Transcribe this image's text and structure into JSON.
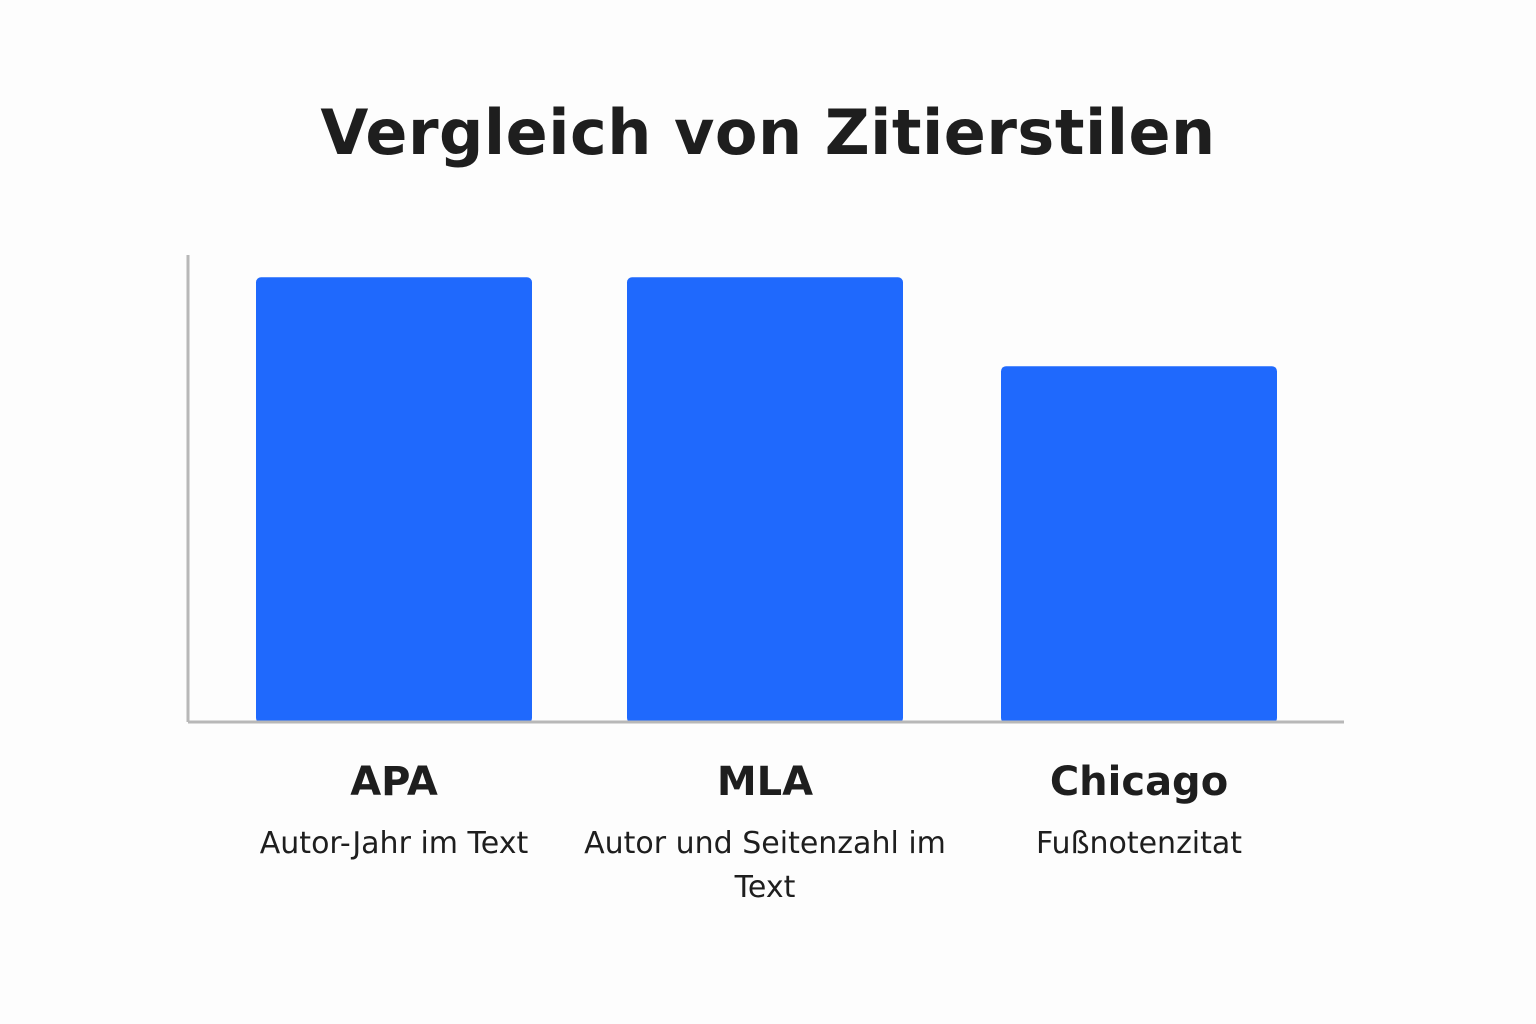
{
  "chart_data": {
    "type": "bar",
    "title": "Vergleich von Zitierstilen",
    "categories": [
      "APA",
      "MLA",
      "Chicago"
    ],
    "descriptions": [
      "Autor-Jahr im Text",
      "Autor und Seitenzahl im Text",
      "Fußnotenzitat"
    ],
    "values": [
      100,
      100,
      80
    ],
    "xlabel": "",
    "ylabel": "",
    "ylim": [
      0,
      105
    ],
    "grid": false,
    "bar_color": "#1f69fd",
    "axis_color": "#b8b8b8"
  }
}
